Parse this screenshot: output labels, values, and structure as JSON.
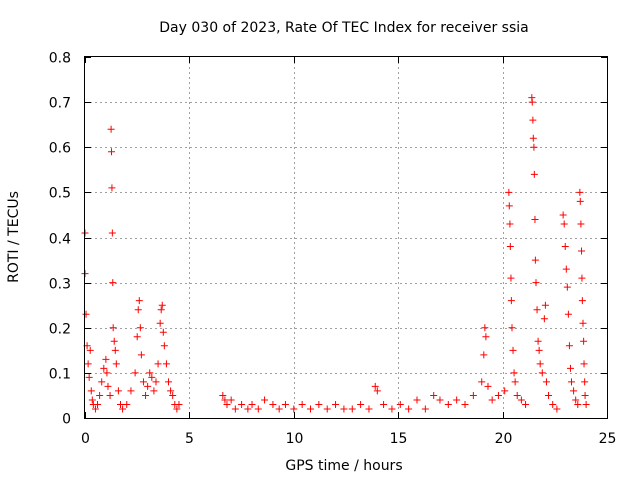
{
  "chart_data": {
    "type": "scatter",
    "title": "Day 030 of 2023, Rate Of TEC Index for receiver ssia",
    "xlabel": "GPS time / hours",
    "ylabel": "ROTI / TECUs",
    "xlim": [
      0,
      25
    ],
    "ylim": [
      0,
      0.8
    ],
    "x_ticks": [
      0,
      5,
      10,
      15,
      20,
      25
    ],
    "x_tick_labels": [
      "0",
      "5",
      "10",
      "15",
      "20",
      "25"
    ],
    "y_ticks": [
      0,
      0.1,
      0.2,
      0.3,
      0.4,
      0.5,
      0.6,
      0.7,
      0.8
    ],
    "y_tick_labels": [
      "0",
      "0.1",
      "0.2",
      "0.3",
      "0.4",
      "0.5",
      "0.6",
      "0.7",
      "0.8"
    ],
    "grid": true,
    "marker": "+",
    "marker_color": "#ff0000",
    "series": [
      {
        "points": [
          [
            0.0,
            0.41
          ],
          [
            0.0,
            0.32
          ],
          [
            0.05,
            0.23
          ],
          [
            0.1,
            0.16
          ],
          [
            0.15,
            0.12
          ],
          [
            0.2,
            0.09
          ],
          [
            0.25,
            0.15
          ],
          [
            0.3,
            0.06
          ],
          [
            0.35,
            0.04
          ],
          [
            0.4,
            0.03
          ],
          [
            0.5,
            0.02
          ],
          [
            0.6,
            0.03
          ],
          [
            0.7,
            0.05
          ],
          [
            0.8,
            0.08
          ],
          [
            0.9,
            0.11
          ],
          [
            1.0,
            0.13
          ],
          [
            1.05,
            0.1
          ],
          [
            1.1,
            0.07
          ],
          [
            1.2,
            0.05
          ],
          [
            1.25,
            0.64
          ],
          [
            1.27,
            0.59
          ],
          [
            1.29,
            0.51
          ],
          [
            1.31,
            0.41
          ],
          [
            1.33,
            0.3
          ],
          [
            1.35,
            0.2
          ],
          [
            1.4,
            0.17
          ],
          [
            1.45,
            0.15
          ],
          [
            1.5,
            0.12
          ],
          [
            1.6,
            0.06
          ],
          [
            1.7,
            0.03
          ],
          [
            1.8,
            0.02
          ],
          [
            2.0,
            0.03
          ],
          [
            2.2,
            0.06
          ],
          [
            2.4,
            0.1
          ],
          [
            2.5,
            0.18
          ],
          [
            2.55,
            0.24
          ],
          [
            2.6,
            0.26
          ],
          [
            2.65,
            0.2
          ],
          [
            2.7,
            0.14
          ],
          [
            2.8,
            0.08
          ],
          [
            2.9,
            0.05
          ],
          [
            3.0,
            0.07
          ],
          [
            3.1,
            0.1
          ],
          [
            3.2,
            0.09
          ],
          [
            3.3,
            0.06
          ],
          [
            3.4,
            0.08
          ],
          [
            3.5,
            0.12
          ],
          [
            3.6,
            0.21
          ],
          [
            3.65,
            0.24
          ],
          [
            3.7,
            0.25
          ],
          [
            3.75,
            0.19
          ],
          [
            3.8,
            0.16
          ],
          [
            3.9,
            0.12
          ],
          [
            4.0,
            0.08
          ],
          [
            4.1,
            0.06
          ],
          [
            4.2,
            0.05
          ],
          [
            4.3,
            0.03
          ],
          [
            4.4,
            0.02
          ],
          [
            4.5,
            0.03
          ],
          [
            6.6,
            0.05
          ],
          [
            6.7,
            0.04
          ],
          [
            6.8,
            0.03
          ],
          [
            7.0,
            0.04
          ],
          [
            7.2,
            0.02
          ],
          [
            7.5,
            0.03
          ],
          [
            7.8,
            0.02
          ],
          [
            8.0,
            0.03
          ],
          [
            8.3,
            0.02
          ],
          [
            8.6,
            0.04
          ],
          [
            9.0,
            0.03
          ],
          [
            9.3,
            0.02
          ],
          [
            9.6,
            0.03
          ],
          [
            10.0,
            0.02
          ],
          [
            10.4,
            0.03
          ],
          [
            10.8,
            0.02
          ],
          [
            11.2,
            0.03
          ],
          [
            11.6,
            0.02
          ],
          [
            12.0,
            0.03
          ],
          [
            12.4,
            0.02
          ],
          [
            12.8,
            0.02
          ],
          [
            13.2,
            0.03
          ],
          [
            13.6,
            0.02
          ],
          [
            13.9,
            0.07
          ],
          [
            14.0,
            0.06
          ],
          [
            14.3,
            0.03
          ],
          [
            14.7,
            0.02
          ],
          [
            15.1,
            0.03
          ],
          [
            15.5,
            0.02
          ],
          [
            15.9,
            0.04
          ],
          [
            16.3,
            0.02
          ],
          [
            16.7,
            0.05
          ],
          [
            17.0,
            0.04
          ],
          [
            17.4,
            0.03
          ],
          [
            17.8,
            0.04
          ],
          [
            18.2,
            0.03
          ],
          [
            18.6,
            0.05
          ],
          [
            19.0,
            0.08
          ],
          [
            19.1,
            0.14
          ],
          [
            19.15,
            0.2
          ],
          [
            19.2,
            0.18
          ],
          [
            19.3,
            0.07
          ],
          [
            19.5,
            0.04
          ],
          [
            19.8,
            0.05
          ],
          [
            20.1,
            0.06
          ],
          [
            20.3,
            0.5
          ],
          [
            20.32,
            0.47
          ],
          [
            20.35,
            0.43
          ],
          [
            20.37,
            0.38
          ],
          [
            20.4,
            0.31
          ],
          [
            20.42,
            0.26
          ],
          [
            20.45,
            0.2
          ],
          [
            20.5,
            0.15
          ],
          [
            20.55,
            0.1
          ],
          [
            20.6,
            0.08
          ],
          [
            20.7,
            0.05
          ],
          [
            20.9,
            0.04
          ],
          [
            21.1,
            0.03
          ],
          [
            21.4,
            0.71
          ],
          [
            21.42,
            0.7
          ],
          [
            21.45,
            0.66
          ],
          [
            21.47,
            0.62
          ],
          [
            21.5,
            0.6
          ],
          [
            21.52,
            0.54
          ],
          [
            21.55,
            0.44
          ],
          [
            21.57,
            0.35
          ],
          [
            21.6,
            0.3
          ],
          [
            21.65,
            0.24
          ],
          [
            21.7,
            0.17
          ],
          [
            21.75,
            0.15
          ],
          [
            21.8,
            0.12
          ],
          [
            21.9,
            0.1
          ],
          [
            22.0,
            0.22
          ],
          [
            22.05,
            0.25
          ],
          [
            22.1,
            0.08
          ],
          [
            22.2,
            0.05
          ],
          [
            22.4,
            0.03
          ],
          [
            22.6,
            0.02
          ],
          [
            22.9,
            0.45
          ],
          [
            22.95,
            0.43
          ],
          [
            23.0,
            0.38
          ],
          [
            23.05,
            0.33
          ],
          [
            23.1,
            0.29
          ],
          [
            23.15,
            0.23
          ],
          [
            23.2,
            0.16
          ],
          [
            23.25,
            0.11
          ],
          [
            23.3,
            0.08
          ],
          [
            23.4,
            0.06
          ],
          [
            23.5,
            0.04
          ],
          [
            23.6,
            0.03
          ],
          [
            23.7,
            0.5
          ],
          [
            23.72,
            0.48
          ],
          [
            23.75,
            0.43
          ],
          [
            23.78,
            0.37
          ],
          [
            23.8,
            0.31
          ],
          [
            23.82,
            0.26
          ],
          [
            23.85,
            0.21
          ],
          [
            23.88,
            0.17
          ],
          [
            23.9,
            0.12
          ],
          [
            23.93,
            0.08
          ],
          [
            23.95,
            0.05
          ],
          [
            24.0,
            0.03
          ]
        ]
      }
    ]
  }
}
